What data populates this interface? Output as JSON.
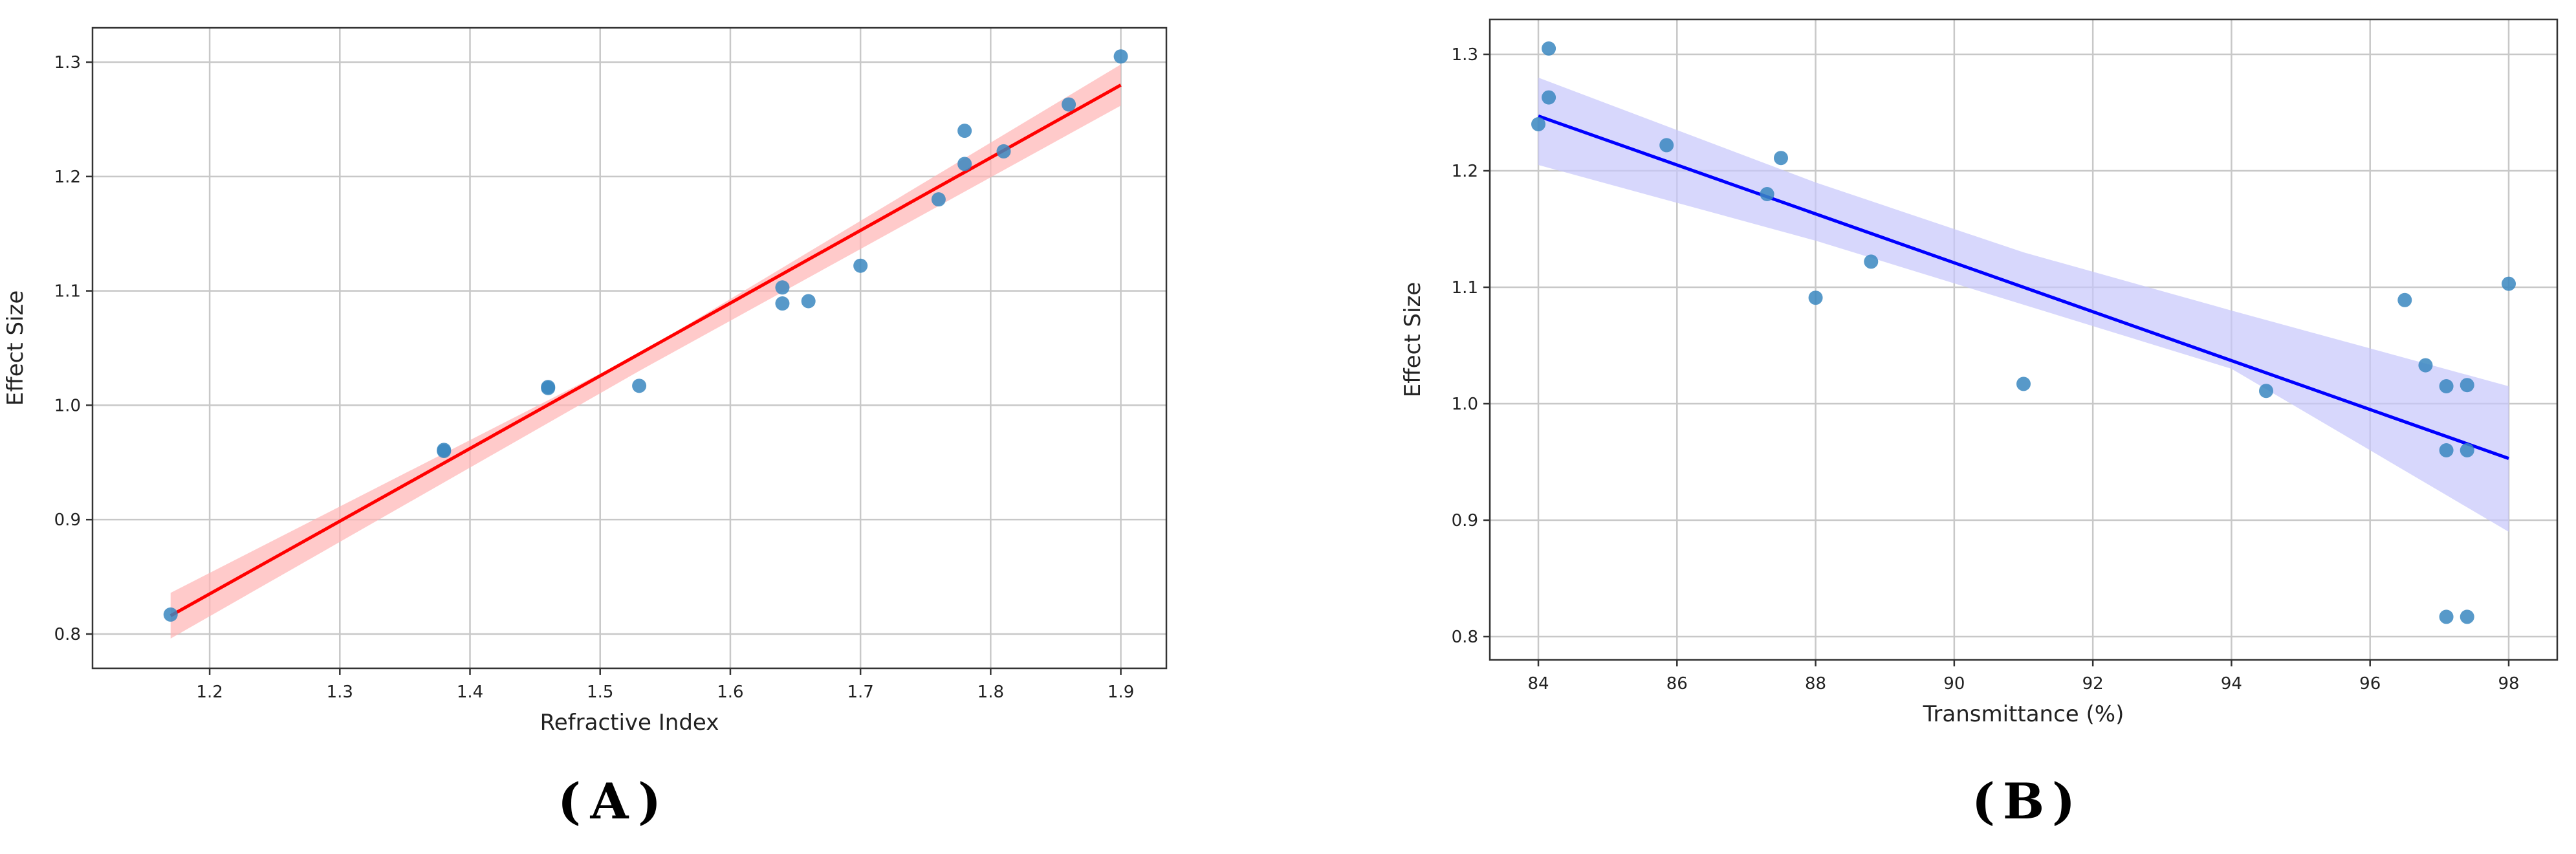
{
  "panels": [
    {
      "id": "A",
      "label_text": "A",
      "chart_data": {
        "type": "scatter",
        "xlabel": "Refractive Index",
        "ylabel": "Effect Size",
        "xlim": [
          1.11,
          1.935
        ],
        "ylim": [
          0.77,
          1.33
        ],
        "xticks": [
          1.2,
          1.3,
          1.4,
          1.5,
          1.6,
          1.7,
          1.8,
          1.9
        ],
        "yticks": [
          0.8,
          0.9,
          1.0,
          1.1,
          1.2,
          1.3
        ],
        "grid": true,
        "point_color": "#3a87c0",
        "line_color": "#ff0000",
        "band_color": "#ffb3b3",
        "points": [
          {
            "x": 1.17,
            "y": 0.817
          },
          {
            "x": 1.38,
            "y": 0.96
          },
          {
            "x": 1.38,
            "y": 0.961
          },
          {
            "x": 1.46,
            "y": 1.015
          },
          {
            "x": 1.46,
            "y": 1.016
          },
          {
            "x": 1.53,
            "y": 1.017
          },
          {
            "x": 1.64,
            "y": 1.103
          },
          {
            "x": 1.64,
            "y": 1.089
          },
          {
            "x": 1.66,
            "y": 1.091
          },
          {
            "x": 1.7,
            "y": 1.122
          },
          {
            "x": 1.76,
            "y": 1.18
          },
          {
            "x": 1.78,
            "y": 1.24
          },
          {
            "x": 1.78,
            "y": 1.211
          },
          {
            "x": 1.81,
            "y": 1.222
          },
          {
            "x": 1.86,
            "y": 1.263
          },
          {
            "x": 1.9,
            "y": 1.305
          }
        ],
        "regression": {
          "x": [
            1.17,
            1.9
          ],
          "y": [
            0.816,
            1.28
          ]
        },
        "confidence_band": {
          "x": [
            1.17,
            1.53,
            1.9
          ],
          "upper": [
            0.836,
            1.045,
            1.298
          ],
          "lower": [
            0.796,
            1.03,
            1.262
          ]
        }
      }
    },
    {
      "id": "B",
      "label_text": "B",
      "chart_data": {
        "type": "scatter",
        "xlabel": "Transmittance (%)",
        "ylabel": "Effect Size",
        "xlim": [
          83.3,
          98.7
        ],
        "ylim": [
          0.78,
          1.33
        ],
        "xticks": [
          84,
          86,
          88,
          90,
          92,
          94,
          96,
          98
        ],
        "yticks": [
          0.8,
          0.9,
          1.0,
          1.1,
          1.2,
          1.3
        ],
        "grid": true,
        "point_color": "#3a87c0",
        "line_color": "#0000ff",
        "band_color": "#c6c6fb",
        "points": [
          {
            "x": 84.15,
            "y": 1.305
          },
          {
            "x": 84.15,
            "y": 1.263
          },
          {
            "x": 84.0,
            "y": 1.24
          },
          {
            "x": 85.85,
            "y": 1.222
          },
          {
            "x": 87.5,
            "y": 1.211
          },
          {
            "x": 87.3,
            "y": 1.18
          },
          {
            "x": 88.0,
            "y": 1.091
          },
          {
            "x": 88.8,
            "y": 1.122
          },
          {
            "x": 91.0,
            "y": 1.017
          },
          {
            "x": 94.5,
            "y": 1.011
          },
          {
            "x": 96.5,
            "y": 1.089
          },
          {
            "x": 96.8,
            "y": 1.033
          },
          {
            "x": 97.1,
            "y": 1.015
          },
          {
            "x": 97.4,
            "y": 1.016
          },
          {
            "x": 97.1,
            "y": 0.96
          },
          {
            "x": 97.4,
            "y": 0.96
          },
          {
            "x": 97.1,
            "y": 0.817
          },
          {
            "x": 97.4,
            "y": 0.817
          },
          {
            "x": 98.0,
            "y": 1.103
          }
        ],
        "regression": {
          "x": [
            84.0,
            98.0
          ],
          "y": [
            1.247,
            0.953
          ]
        },
        "confidence_band": {
          "x": [
            84.0,
            88.0,
            91.0,
            94.0,
            98.0
          ],
          "upper": [
            1.28,
            1.19,
            1.13,
            1.08,
            1.015
          ],
          "lower": [
            1.205,
            1.14,
            1.085,
            1.03,
            0.89
          ]
        }
      }
    }
  ]
}
